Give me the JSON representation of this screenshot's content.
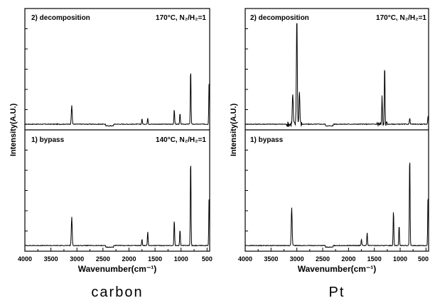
{
  "chart_data": [
    {
      "type": "line",
      "caption": "carbon",
      "xlabel": "Wavenumber(cm⁻¹)",
      "ylabel": "Intensity(A.U.)",
      "xlim": [
        4000,
        450
      ],
      "x_ticks": [
        4000,
        3500,
        3000,
        2500,
        2000,
        1500,
        1000,
        500
      ],
      "grid": false,
      "subpanels": [
        {
          "label": "2) decomposition",
          "condition": "170°C, N₂/H₂=1",
          "peaks": [
            {
              "x": 3100,
              "h": 0.17
            },
            {
              "x": 1750,
              "h": 0.05
            },
            {
              "x": 1640,
              "h": 0.06
            },
            {
              "x": 1130,
              "h": 0.14
            },
            {
              "x": 1020,
              "h": 0.1
            },
            {
              "x": 815,
              "h": 0.52
            },
            {
              "x": 460,
              "h": 0.42
            }
          ]
        },
        {
          "label": "1) bypass",
          "condition": "140°C, N₂/H₂=1",
          "peaks": [
            {
              "x": 3100,
              "h": 0.26
            },
            {
              "x": 1750,
              "h": 0.06
            },
            {
              "x": 1640,
              "h": 0.13
            },
            {
              "x": 1130,
              "h": 0.24
            },
            {
              "x": 1020,
              "h": 0.15
            },
            {
              "x": 815,
              "h": 0.82
            },
            {
              "x": 460,
              "h": 0.48
            }
          ]
        }
      ]
    },
    {
      "type": "line",
      "caption": "Pt",
      "xlabel": "Wavenumber(cm⁻¹)",
      "ylabel": "Intensity(A.U.)",
      "xlim": [
        4000,
        450
      ],
      "x_ticks": [
        4000,
        3500,
        3000,
        2500,
        2000,
        1500,
        1000,
        500
      ],
      "grid": false,
      "subpanels": [
        {
          "label": "2) decomposition",
          "condition": "170°C, N₂/H₂=1",
          "peaks": [
            {
              "x": 3080,
              "h": 0.28
            },
            {
              "x": 3000,
              "h": 1.0
            },
            {
              "x": 2950,
              "h": 0.3
            },
            {
              "x": 1350,
              "h": 0.25
            },
            {
              "x": 1300,
              "h": 0.55
            },
            {
              "x": 815,
              "h": 0.06
            },
            {
              "x": 460,
              "h": 0.08
            }
          ]
        },
        {
          "label": "1) bypass",
          "condition": "",
          "peaks": [
            {
              "x": 3100,
              "h": 0.35
            },
            {
              "x": 1750,
              "h": 0.06
            },
            {
              "x": 1640,
              "h": 0.12
            },
            {
              "x": 1130,
              "h": 0.33
            },
            {
              "x": 1020,
              "h": 0.19
            },
            {
              "x": 815,
              "h": 0.85
            },
            {
              "x": 460,
              "h": 0.48
            }
          ]
        }
      ]
    }
  ]
}
